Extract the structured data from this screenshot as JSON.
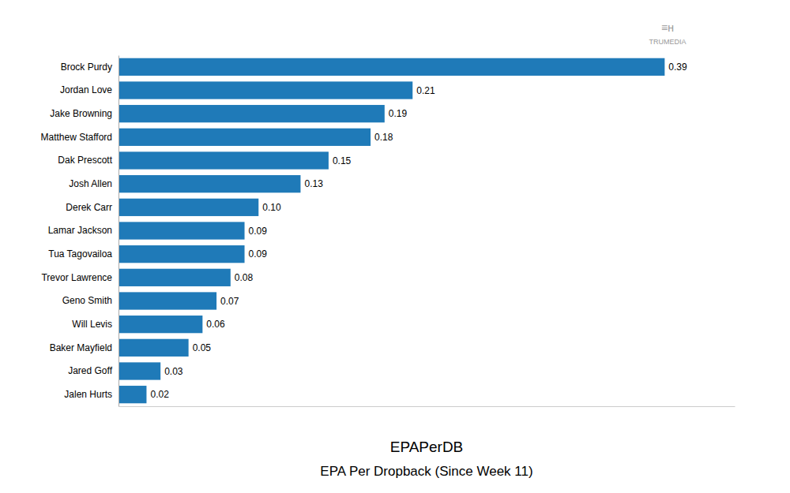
{
  "chart_data": {
    "type": "bar",
    "orientation": "horizontal",
    "title": "EPAPerDB",
    "subtitle": "EPA Per Dropback (Since Week 11)",
    "annotations": [
      "TRUMEDIA",
      "≡ʜ"
    ],
    "categories": [
      "Brock Purdy",
      "Jordan Love",
      "Jake Browning",
      "Matthew Stafford",
      "Dak Prescott",
      "Josh Allen",
      "Derek Carr",
      "Lamar Jackson",
      "Tua Tagovailoa",
      "Trevor Lawrence",
      "Geno Smith",
      "Will Levis",
      "Baker Mayfield",
      "Jared Goff",
      "Jalen Hurts"
    ],
    "values": [
      0.39,
      0.21,
      0.19,
      0.18,
      0.15,
      0.13,
      0.1,
      0.09,
      0.09,
      0.08,
      0.07,
      0.06,
      0.05,
      0.03,
      0.02
    ],
    "value_labels": [
      "0.39",
      "0.21",
      "0.19",
      "0.18",
      "0.15",
      "0.13",
      "0.10",
      "0.09",
      "0.09",
      "0.08",
      "0.07",
      "0.06",
      "0.05",
      "0.03",
      "0.02"
    ],
    "color": "#1f7ab8",
    "xlim": [
      0,
      0.44
    ],
    "data_labels": true,
    "tick_labels": "y",
    "grid": false
  }
}
